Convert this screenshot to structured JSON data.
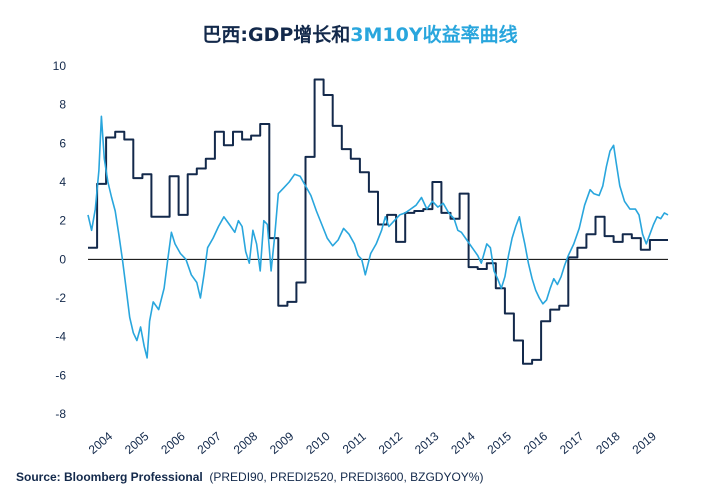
{
  "title": {
    "part1": "巴西:GDP增长和",
    "part2": "3M10Y收益率曲线"
  },
  "source": {
    "label": "Source: Bloomberg Professional",
    "detail": "(PREDI90, PREDI2520, PREDI3600, BZGDYOY%)"
  },
  "colors": {
    "gdp_line": "#13294b",
    "curve_line": "#29a6dd",
    "axis": "#000000",
    "text": "#13294b"
  },
  "chart_data": {
    "type": "line",
    "title": "巴西:GDP增长和3M10Y收益率曲线",
    "xlabel": "",
    "ylabel": "",
    "xlim": [
      2003.75,
      2019.75
    ],
    "ylim": [
      -8,
      10
    ],
    "yticks": [
      10,
      8,
      6,
      4,
      2,
      0,
      -2,
      -4,
      -6,
      -8
    ],
    "xticks": [
      "2004",
      "2005",
      "2006",
      "2007",
      "2008",
      "2009",
      "2010",
      "2011",
      "2012",
      "2013",
      "2014",
      "2015",
      "2016",
      "2017",
      "2018",
      "2019"
    ],
    "grid": false,
    "legend": "none",
    "series": [
      {
        "color": "#13294b",
        "style": "step",
        "points": [
          [
            2003.75,
            0.6
          ],
          [
            2004.0,
            3.9
          ],
          [
            2004.25,
            6.3
          ],
          [
            2004.5,
            6.6
          ],
          [
            2004.75,
            6.2
          ],
          [
            2005.0,
            4.2
          ],
          [
            2005.25,
            4.4
          ],
          [
            2005.5,
            2.2
          ],
          [
            2005.75,
            2.2
          ],
          [
            2006.0,
            4.3
          ],
          [
            2006.25,
            2.3
          ],
          [
            2006.5,
            4.4
          ],
          [
            2006.75,
            4.7
          ],
          [
            2007.0,
            5.2
          ],
          [
            2007.25,
            6.6
          ],
          [
            2007.5,
            5.9
          ],
          [
            2007.75,
            6.6
          ],
          [
            2008.0,
            6.2
          ],
          [
            2008.25,
            6.4
          ],
          [
            2008.5,
            7.0
          ],
          [
            2008.75,
            1.1
          ],
          [
            2009.0,
            -2.4
          ],
          [
            2009.25,
            -2.2
          ],
          [
            2009.5,
            -1.2
          ],
          [
            2009.75,
            5.3
          ],
          [
            2010.0,
            9.3
          ],
          [
            2010.25,
            8.5
          ],
          [
            2010.5,
            6.9
          ],
          [
            2010.75,
            5.7
          ],
          [
            2011.0,
            5.2
          ],
          [
            2011.25,
            4.5
          ],
          [
            2011.5,
            3.5
          ],
          [
            2011.75,
            1.8
          ],
          [
            2012.0,
            2.3
          ],
          [
            2012.25,
            0.9
          ],
          [
            2012.5,
            2.4
          ],
          [
            2012.75,
            2.5
          ],
          [
            2013.0,
            2.6
          ],
          [
            2013.25,
            4.0
          ],
          [
            2013.5,
            2.4
          ],
          [
            2013.75,
            2.1
          ],
          [
            2014.0,
            3.4
          ],
          [
            2014.25,
            -0.4
          ],
          [
            2014.5,
            -0.5
          ],
          [
            2014.75,
            -0.2
          ],
          [
            2015.0,
            -1.5
          ],
          [
            2015.25,
            -2.8
          ],
          [
            2015.5,
            -4.2
          ],
          [
            2015.75,
            -5.4
          ],
          [
            2016.0,
            -5.2
          ],
          [
            2016.25,
            -3.2
          ],
          [
            2016.5,
            -2.6
          ],
          [
            2016.75,
            -2.4
          ],
          [
            2017.0,
            0.1
          ],
          [
            2017.25,
            0.6
          ],
          [
            2017.5,
            1.3
          ],
          [
            2017.75,
            2.2
          ],
          [
            2018.0,
            1.2
          ],
          [
            2018.25,
            0.9
          ],
          [
            2018.5,
            1.3
          ],
          [
            2018.75,
            1.1
          ],
          [
            2019.0,
            0.5
          ],
          [
            2019.25,
            1.0
          ],
          [
            2019.75,
            1.0
          ]
        ]
      },
      {
        "color": "#29a6dd",
        "style": "line",
        "points": [
          [
            2003.75,
            2.3
          ],
          [
            2003.85,
            1.5
          ],
          [
            2003.95,
            2.6
          ],
          [
            2004.05,
            4.6
          ],
          [
            2004.12,
            7.4
          ],
          [
            2004.2,
            5.2
          ],
          [
            2004.3,
            4.0
          ],
          [
            2004.4,
            3.2
          ],
          [
            2004.5,
            2.5
          ],
          [
            2004.6,
            1.3
          ],
          [
            2004.7,
            0.0
          ],
          [
            2004.8,
            -1.5
          ],
          [
            2004.9,
            -3.0
          ],
          [
            2005.0,
            -3.8
          ],
          [
            2005.1,
            -4.2
          ],
          [
            2005.2,
            -3.5
          ],
          [
            2005.3,
            -4.5
          ],
          [
            2005.38,
            -5.1
          ],
          [
            2005.45,
            -3.2
          ],
          [
            2005.55,
            -2.2
          ],
          [
            2005.7,
            -2.6
          ],
          [
            2005.85,
            -1.5
          ],
          [
            2005.95,
            0.0
          ],
          [
            2006.05,
            1.4
          ],
          [
            2006.15,
            0.8
          ],
          [
            2006.3,
            0.3
          ],
          [
            2006.45,
            0.0
          ],
          [
            2006.6,
            -0.8
          ],
          [
            2006.75,
            -1.2
          ],
          [
            2006.85,
            -2.0
          ],
          [
            2006.95,
            -0.8
          ],
          [
            2007.05,
            0.6
          ],
          [
            2007.2,
            1.1
          ],
          [
            2007.35,
            1.7
          ],
          [
            2007.5,
            2.2
          ],
          [
            2007.65,
            1.8
          ],
          [
            2007.8,
            1.4
          ],
          [
            2007.9,
            2.0
          ],
          [
            2008.0,
            1.7
          ],
          [
            2008.1,
            0.4
          ],
          [
            2008.2,
            -0.2
          ],
          [
            2008.3,
            1.5
          ],
          [
            2008.4,
            0.8
          ],
          [
            2008.5,
            -0.6
          ],
          [
            2008.6,
            2.0
          ],
          [
            2008.7,
            1.8
          ],
          [
            2008.8,
            -0.6
          ],
          [
            2008.9,
            1.2
          ],
          [
            2009.0,
            3.4
          ],
          [
            2009.15,
            3.7
          ],
          [
            2009.3,
            4.0
          ],
          [
            2009.45,
            4.4
          ],
          [
            2009.6,
            4.3
          ],
          [
            2009.75,
            3.8
          ],
          [
            2009.9,
            3.3
          ],
          [
            2010.05,
            2.5
          ],
          [
            2010.2,
            1.8
          ],
          [
            2010.35,
            1.1
          ],
          [
            2010.5,
            0.7
          ],
          [
            2010.65,
            1.0
          ],
          [
            2010.8,
            1.6
          ],
          [
            2010.95,
            1.3
          ],
          [
            2011.1,
            0.8
          ],
          [
            2011.2,
            0.2
          ],
          [
            2011.3,
            0.0
          ],
          [
            2011.4,
            -0.8
          ],
          [
            2011.55,
            0.3
          ],
          [
            2011.7,
            0.8
          ],
          [
            2011.85,
            1.5
          ],
          [
            2011.95,
            2.2
          ],
          [
            2012.05,
            1.7
          ],
          [
            2012.2,
            2.0
          ],
          [
            2012.35,
            2.3
          ],
          [
            2012.5,
            2.4
          ],
          [
            2012.65,
            2.6
          ],
          [
            2012.8,
            2.8
          ],
          [
            2012.95,
            3.2
          ],
          [
            2013.1,
            2.6
          ],
          [
            2013.25,
            3.0
          ],
          [
            2013.4,
            2.7
          ],
          [
            2013.55,
            2.9
          ],
          [
            2013.7,
            2.4
          ],
          [
            2013.85,
            2.1
          ],
          [
            2013.95,
            1.5
          ],
          [
            2014.05,
            1.4
          ],
          [
            2014.2,
            1.0
          ],
          [
            2014.35,
            0.6
          ],
          [
            2014.5,
            0.2
          ],
          [
            2014.6,
            -0.2
          ],
          [
            2014.75,
            0.8
          ],
          [
            2014.85,
            0.6
          ],
          [
            2014.95,
            -0.6
          ],
          [
            2015.05,
            -1.0
          ],
          [
            2015.15,
            -1.5
          ],
          [
            2015.25,
            -0.9
          ],
          [
            2015.35,
            0.2
          ],
          [
            2015.45,
            1.1
          ],
          [
            2015.55,
            1.7
          ],
          [
            2015.65,
            2.2
          ],
          [
            2015.72,
            1.5
          ],
          [
            2015.8,
            0.8
          ],
          [
            2015.9,
            -0.2
          ],
          [
            2016.0,
            -1.0
          ],
          [
            2016.1,
            -1.6
          ],
          [
            2016.2,
            -2.0
          ],
          [
            2016.3,
            -2.3
          ],
          [
            2016.4,
            -2.1
          ],
          [
            2016.5,
            -1.5
          ],
          [
            2016.6,
            -1.0
          ],
          [
            2016.7,
            -1.3
          ],
          [
            2016.8,
            -0.9
          ],
          [
            2016.9,
            -0.3
          ],
          [
            2017.0,
            0.2
          ],
          [
            2017.15,
            0.8
          ],
          [
            2017.3,
            1.6
          ],
          [
            2017.45,
            2.8
          ],
          [
            2017.6,
            3.6
          ],
          [
            2017.7,
            3.4
          ],
          [
            2017.85,
            3.3
          ],
          [
            2017.95,
            3.8
          ],
          [
            2018.05,
            4.8
          ],
          [
            2018.15,
            5.6
          ],
          [
            2018.25,
            5.9
          ],
          [
            2018.32,
            5.0
          ],
          [
            2018.42,
            3.8
          ],
          [
            2018.55,
            3.0
          ],
          [
            2018.7,
            2.6
          ],
          [
            2018.85,
            2.6
          ],
          [
            2018.95,
            2.3
          ],
          [
            2019.05,
            1.3
          ],
          [
            2019.15,
            0.8
          ],
          [
            2019.25,
            1.3
          ],
          [
            2019.35,
            1.8
          ],
          [
            2019.45,
            2.2
          ],
          [
            2019.55,
            2.1
          ],
          [
            2019.65,
            2.4
          ],
          [
            2019.75,
            2.3
          ]
        ]
      }
    ]
  }
}
